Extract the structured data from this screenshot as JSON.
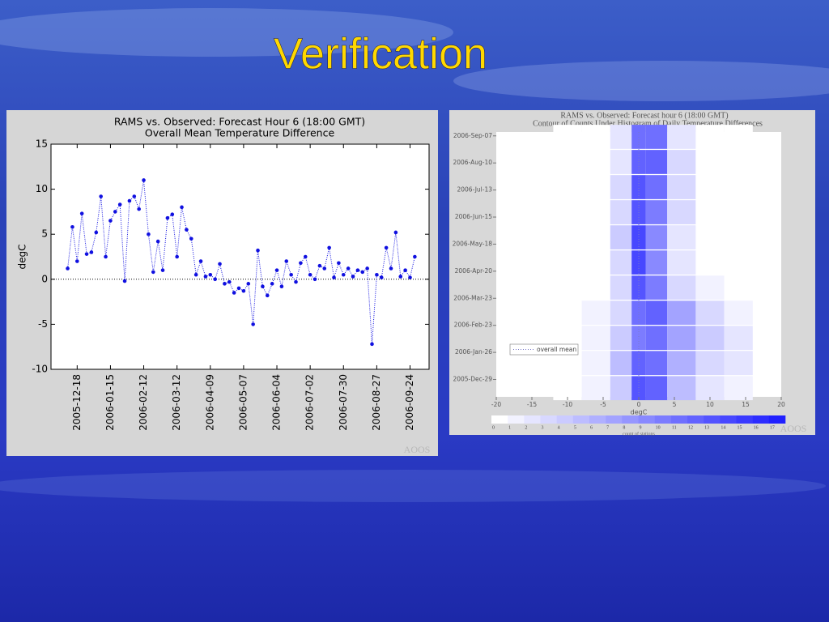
{
  "slide_title": "Verification",
  "watermark": "AOOS",
  "chart_data": [
    {
      "type": "line",
      "title": "RAMS vs. Observed:  Forecast Hour 6 (18:00 GMT)",
      "subtitle": "Overall Mean Temperature Difference",
      "y_label": "degC",
      "color": "#1010e0",
      "x": [
        "2005-12-10",
        "2005-12-14",
        "2005-12-18",
        "2005-12-22",
        "2005-12-26",
        "2005-12-30",
        "2006-01-03",
        "2006-01-07",
        "2006-01-11",
        "2006-01-15",
        "2006-01-19",
        "2006-01-23",
        "2006-01-27",
        "2006-01-31",
        "2006-02-04",
        "2006-02-08",
        "2006-02-12",
        "2006-02-16",
        "2006-02-20",
        "2006-02-24",
        "2006-02-28",
        "2006-03-04",
        "2006-03-08",
        "2006-03-12",
        "2006-03-16",
        "2006-03-20",
        "2006-03-24",
        "2006-03-28",
        "2006-04-01",
        "2006-04-05",
        "2006-04-09",
        "2006-04-13",
        "2006-04-17",
        "2006-04-21",
        "2006-04-25",
        "2006-04-29",
        "2006-05-03",
        "2006-05-07",
        "2006-05-11",
        "2006-05-15",
        "2006-05-19",
        "2006-05-23",
        "2006-05-27",
        "2006-05-31",
        "2006-06-04",
        "2006-06-08",
        "2006-06-12",
        "2006-06-16",
        "2006-06-20",
        "2006-06-24",
        "2006-06-28",
        "2006-07-02",
        "2006-07-06",
        "2006-07-10",
        "2006-07-14",
        "2006-07-18",
        "2006-07-22",
        "2006-07-26",
        "2006-07-30",
        "2006-08-03",
        "2006-08-07",
        "2006-08-11",
        "2006-08-15",
        "2006-08-19",
        "2006-08-23",
        "2006-08-27",
        "2006-08-31",
        "2006-09-04",
        "2006-09-08",
        "2006-09-12",
        "2006-09-16",
        "2006-09-20",
        "2006-09-24",
        "2006-09-28"
      ],
      "values": [
        1.2,
        5.8,
        2.0,
        7.3,
        2.8,
        3.0,
        5.2,
        9.2,
        2.5,
        6.5,
        7.5,
        8.3,
        -0.2,
        8.7,
        9.2,
        7.8,
        11.0,
        5.0,
        0.8,
        4.2,
        1.0,
        6.8,
        7.2,
        2.5,
        8.0,
        5.5,
        4.5,
        0.5,
        2.0,
        0.3,
        0.5,
        0.0,
        1.7,
        -0.5,
        -0.3,
        -1.5,
        -1.0,
        -1.3,
        -0.5,
        -5.0,
        3.2,
        -0.8,
        -1.8,
        -0.5,
        1.0,
        -0.8,
        2.0,
        0.5,
        -0.3,
        1.8,
        2.5,
        0.5,
        0.0,
        1.5,
        1.2,
        3.5,
        0.2,
        1.8,
        0.5,
        1.2,
        0.3,
        1.0,
        0.8,
        1.2,
        -7.2,
        0.5,
        0.2,
        3.5,
        1.2,
        5.2,
        0.3,
        1.0,
        0.2,
        2.5
      ],
      "xlim": [
        "2005-11-26",
        "2006-10-10"
      ],
      "xticks": [
        "2005-12-18",
        "2006-01-15",
        "2006-02-12",
        "2006-03-12",
        "2006-04-09",
        "2006-05-07",
        "2006-06-04",
        "2006-07-02",
        "2006-07-30",
        "2006-08-27",
        "2006-09-24"
      ],
      "ylim": [
        -10,
        15
      ],
      "yticks": [
        -10,
        -5,
        0,
        5,
        10,
        15
      ],
      "zero_line": true
    },
    {
      "type": "heatmap",
      "title": "RAMS vs. Observed:  Forecast hour 6 (18:00 GMT)",
      "subtitle": "Contour of Counts Under Histogram of Daily Temperature Differences",
      "x_label": "degC",
      "colorbar_label": "count of stations",
      "legend": "overall mean",
      "color": "#2020ff",
      "x_bins": [
        -12,
        -8,
        -4,
        -1,
        1,
        4,
        8,
        12,
        16
      ],
      "y": [
        "2005-12-20",
        "2006-01-15",
        "2006-02-10",
        "2006-03-08",
        "2006-04-03",
        "2006-04-29",
        "2006-05-25",
        "2006-06-20",
        "2006-07-16",
        "2006-08-11",
        "2006-09-06"
      ],
      "values": [
        [
          0,
          1,
          4,
          13,
          12,
          5,
          2,
          1
        ],
        [
          0,
          1,
          5,
          12,
          11,
          6,
          3,
          2
        ],
        [
          0,
          1,
          4,
          10,
          11,
          7,
          4,
          2
        ],
        [
          0,
          1,
          3,
          11,
          12,
          7,
          3,
          1
        ],
        [
          0,
          0,
          3,
          13,
          10,
          3,
          1,
          0
        ],
        [
          0,
          0,
          3,
          14,
          9,
          2,
          0,
          0
        ],
        [
          0,
          0,
          4,
          14,
          9,
          2,
          0,
          0
        ],
        [
          0,
          0,
          3,
          13,
          10,
          3,
          0,
          0
        ],
        [
          0,
          0,
          3,
          13,
          11,
          3,
          0,
          0
        ],
        [
          0,
          0,
          2,
          12,
          12,
          3,
          0,
          0
        ],
        [
          0,
          0,
          2,
          11,
          11,
          2,
          0,
          0
        ]
      ],
      "xlim": [
        -20,
        20
      ],
      "xticks": [
        -20,
        -15,
        -10,
        -5,
        0,
        5,
        10,
        15,
        20
      ],
      "ylim": [
        "2005-12-11",
        "2006-09-11"
      ],
      "yticks": [
        "2005-Dec-29",
        "2006-Jan-26",
        "2006-Feb-23",
        "2006-Mar-23",
        "2006-Apr-20",
        "2006-May-18",
        "2006-Jun-15",
        "2006-Jul-13",
        "2006-Aug-10",
        "2006-Sep-07"
      ],
      "ytick_dates": [
        "2005-12-29",
        "2006-01-26",
        "2006-02-23",
        "2006-03-23",
        "2006-04-20",
        "2006-05-18",
        "2006-06-15",
        "2006-07-13",
        "2006-08-10",
        "2006-09-07"
      ],
      "colorbar_ticks": [
        0,
        1,
        2,
        3,
        4,
        5,
        6,
        7,
        8,
        9,
        10,
        11,
        12,
        13,
        14,
        15,
        16,
        17
      ]
    }
  ]
}
